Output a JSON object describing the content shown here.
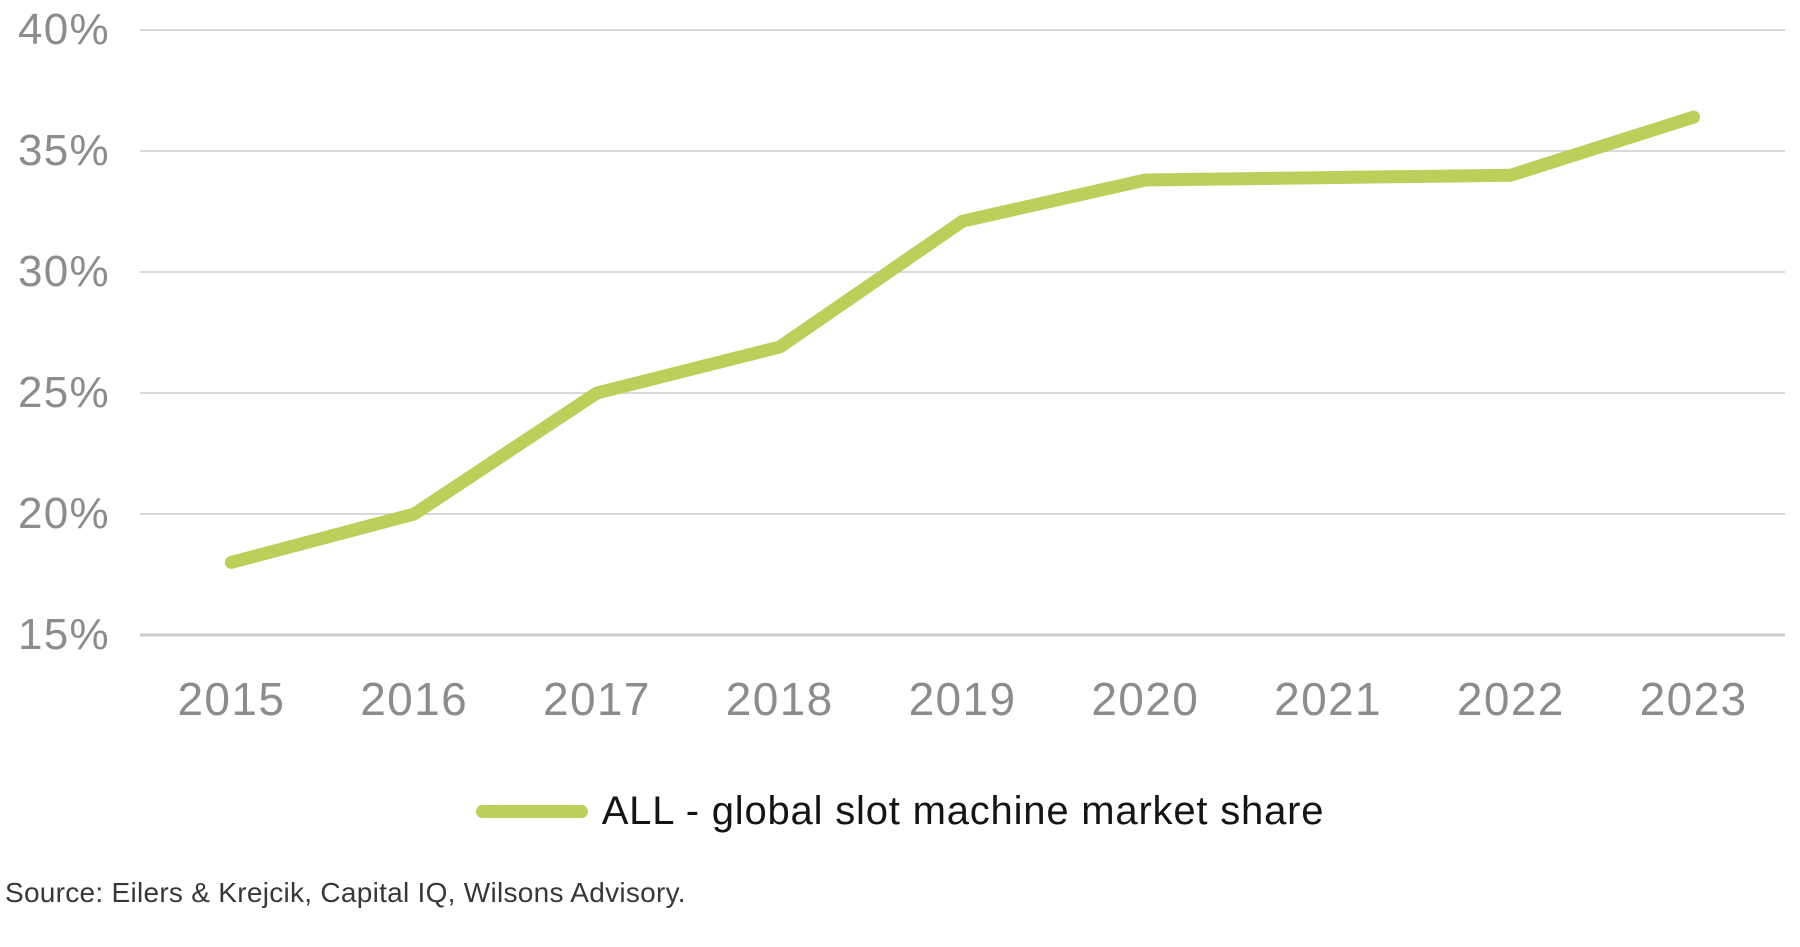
{
  "chart_data": {
    "type": "line",
    "title": "",
    "xlabel": "",
    "ylabel": "",
    "categories": [
      "2015",
      "2016",
      "2017",
      "2018",
      "2019",
      "2020",
      "2021",
      "2022",
      "2023"
    ],
    "series": [
      {
        "name": "ALL - global slot machine market share",
        "values": [
          18.0,
          20.0,
          25.0,
          26.9,
          32.1,
          33.8,
          33.9,
          34.0,
          36.4
        ]
      }
    ],
    "ylim": [
      15,
      40
    ],
    "ytick_step": 5,
    "ytick_labels": [
      "15%",
      "20%",
      "25%",
      "30%",
      "35%",
      "40%"
    ],
    "grid": "horizontal-only",
    "legend_position": "bottom-center"
  },
  "legend": {
    "label": "ALL - global slot machine market share"
  },
  "source": {
    "text": "Source: Eilers & Krejcik, Capital IQ, Wilsons Advisory."
  },
  "colors": {
    "line": "#bccf5a",
    "grid": "#d9d9d9",
    "grid_bottom": "#cccccc",
    "axis_label": "#8c8c8c",
    "legend_text": "#141414",
    "source_text": "#383838",
    "background": "#ffffff"
  }
}
